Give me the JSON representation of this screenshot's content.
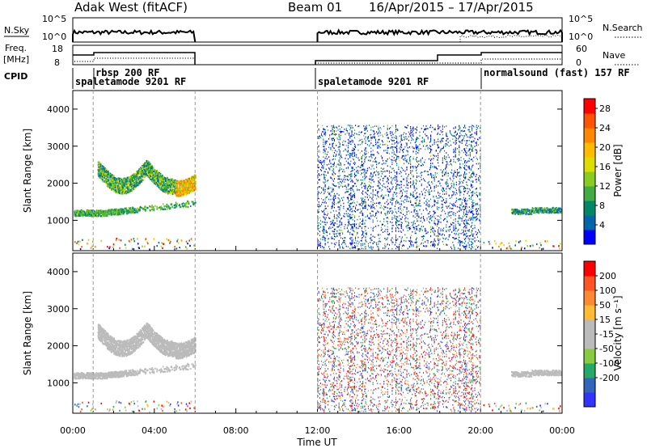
{
  "header": {
    "radar": "Adak West (fitACF)",
    "beam": "Beam 01",
    "dates": "16/Apr/2015 – 17/Apr/2015"
  },
  "aux_panels": {
    "nsky_label": "N.Sky",
    "nsky_ticks": [
      "10^5",
      "10^0"
    ],
    "nsearch_label": "N.Search",
    "nsearch_ticks": [
      "10^5",
      "10^0"
    ],
    "freq_label_1": "Freq.",
    "freq_label_2": "[MHz]",
    "freq_ticks": [
      "18",
      "8"
    ],
    "nave_label": "Nave",
    "nave_ticks": [
      "60",
      "0"
    ],
    "cpid_label": "CPID",
    "cpid_entries": [
      {
        "text": "rbsp 200 RF",
        "row": 0
      },
      {
        "text": "spaletamode 9201 RF",
        "row": 1
      },
      {
        "text": "spaletamode 9201 RF",
        "row": 1
      },
      {
        "text": "normalsound (fast) 157 RF",
        "row": 0
      }
    ]
  },
  "colors": {
    "power_scale": [
      "#0000ff",
      "#0066aa",
      "#008866",
      "#44aa44",
      "#88cc22",
      "#dddd00",
      "#ffbb00",
      "#ff8800",
      "#ff5500",
      "#ff0000"
    ],
    "velocity_scale": [
      "#3333ff",
      "#3366bb",
      "#22aa66",
      "#88cc44",
      "#bbbbbb",
      "#bbbbbb",
      "#ffbb33",
      "#ff8833",
      "#ff5522",
      "#ff0000"
    ]
  },
  "chart_data": [
    {
      "type": "heatmap",
      "name": "power",
      "ylabel": "Slant Range [km]",
      "y_ticks": [
        1000,
        2000,
        3000,
        4000
      ],
      "ylim": [
        180,
        4500
      ],
      "colorbar_label": "Power [dB]",
      "colorbar_ticks": [
        4,
        8,
        12,
        16,
        20,
        24,
        28
      ],
      "colorbar_range": [
        0,
        30
      ],
      "x_start_utc": "00:00",
      "x_end_utc": "00:00",
      "xlim_hours": [
        0,
        24
      ],
      "data_gap_hours": [
        6,
        12
      ],
      "mode_change_hours": [
        1,
        12,
        20
      ]
    },
    {
      "type": "heatmap",
      "name": "velocity",
      "ylabel": "Slant Range [km]",
      "y_ticks": [
        1000,
        2000,
        3000,
        4000
      ],
      "ylim": [
        180,
        4500
      ],
      "colorbar_label": "Velocity [m s⁻¹]",
      "colorbar_ticks": [
        200,
        100,
        50,
        15,
        -15,
        -50,
        -100,
        -200
      ],
      "xlim_hours": [
        0,
        24
      ],
      "data_gap_hours": [
        6,
        12
      ],
      "mode_change_hours": [
        1,
        12,
        20
      ]
    }
  ],
  "x_axis": {
    "label": "Time UT",
    "ticks": [
      "00:00",
      "04:00",
      "08:00",
      "12:00",
      "16:00",
      "20:00",
      "00:00"
    ]
  }
}
